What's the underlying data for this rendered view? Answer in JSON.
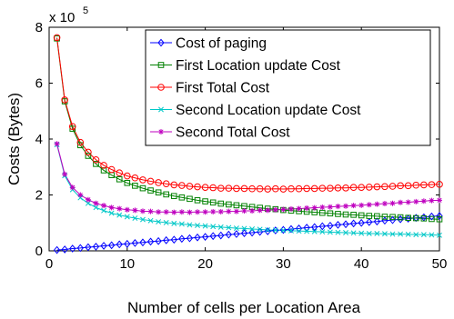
{
  "chart_data": {
    "type": "line",
    "title": "",
    "xlabel": "Number of cells per Location Area",
    "ylabel": "Costs (Bytes)",
    "exponent": {
      "base": "x 10",
      "power": "5"
    },
    "xlim": [
      0,
      50
    ],
    "ylim": [
      0,
      8
    ],
    "y_scale_factor": 100000,
    "xticks": [
      0,
      10,
      20,
      30,
      40,
      50
    ],
    "xtick_labels": [
      "0",
      "10",
      "20",
      "30",
      "40",
      "50"
    ],
    "yticks": [
      0,
      2,
      4,
      6,
      8
    ],
    "ytick_labels": [
      "0",
      "2",
      "4",
      "6",
      "8"
    ],
    "grid": false,
    "legend_position": "top-right",
    "series": [
      {
        "name": "Cost of paging",
        "color": "#0000ff",
        "marker": "diamond",
        "x": [
          1,
          2,
          3,
          4,
          5,
          6,
          7,
          8,
          9,
          10,
          11,
          12,
          13,
          14,
          15,
          16,
          17,
          18,
          19,
          20,
          21,
          22,
          23,
          24,
          25,
          26,
          27,
          28,
          29,
          30,
          31,
          32,
          33,
          34,
          35,
          36,
          37,
          38,
          39,
          40,
          41,
          42,
          43,
          44,
          45,
          46,
          47,
          48,
          49,
          50
        ],
        "y": [
          0.03,
          0.05,
          0.08,
          0.1,
          0.13,
          0.15,
          0.18,
          0.2,
          0.23,
          0.25,
          0.28,
          0.3,
          0.33,
          0.35,
          0.38,
          0.4,
          0.43,
          0.45,
          0.48,
          0.5,
          0.53,
          0.55,
          0.58,
          0.6,
          0.63,
          0.65,
          0.68,
          0.7,
          0.73,
          0.75,
          0.78,
          0.8,
          0.83,
          0.85,
          0.88,
          0.9,
          0.93,
          0.95,
          0.98,
          1.0,
          1.03,
          1.05,
          1.08,
          1.1,
          1.13,
          1.15,
          1.18,
          1.2,
          1.23,
          1.25
        ]
      },
      {
        "name": "First Location update Cost",
        "color": "#008000",
        "marker": "square",
        "x": [
          1,
          2,
          3,
          4,
          5,
          6,
          7,
          8,
          9,
          10,
          11,
          12,
          13,
          14,
          15,
          16,
          17,
          18,
          19,
          20,
          21,
          22,
          23,
          24,
          25,
          26,
          27,
          28,
          29,
          30,
          31,
          32,
          33,
          34,
          35,
          36,
          37,
          38,
          39,
          40,
          41,
          42,
          43,
          44,
          45,
          46,
          47,
          48,
          49,
          50
        ],
        "y": [
          7.6,
          5.35,
          4.37,
          3.78,
          3.4,
          3.11,
          2.88,
          2.71,
          2.56,
          2.43,
          2.33,
          2.24,
          2.16,
          2.09,
          2.02,
          1.96,
          1.91,
          1.86,
          1.81,
          1.77,
          1.73,
          1.69,
          1.66,
          1.63,
          1.6,
          1.57,
          1.54,
          1.51,
          1.49,
          1.46,
          1.44,
          1.42,
          1.4,
          1.38,
          1.36,
          1.34,
          1.32,
          1.3,
          1.29,
          1.27,
          1.25,
          1.24,
          1.22,
          1.21,
          1.2,
          1.18,
          1.17,
          1.16,
          1.14,
          1.13
        ]
      },
      {
        "name": "First Total Cost",
        "color": "#ff0000",
        "marker": "circle",
        "x": [
          1,
          2,
          3,
          4,
          5,
          6,
          7,
          8,
          9,
          10,
          11,
          12,
          13,
          14,
          15,
          16,
          17,
          18,
          19,
          20,
          21,
          22,
          23,
          24,
          25,
          26,
          27,
          28,
          29,
          30,
          31,
          32,
          33,
          34,
          35,
          36,
          37,
          38,
          39,
          40,
          41,
          42,
          43,
          44,
          45,
          46,
          47,
          48,
          49,
          50
        ],
        "y": [
          7.63,
          5.4,
          4.45,
          3.88,
          3.53,
          3.26,
          3.06,
          2.91,
          2.79,
          2.68,
          2.61,
          2.54,
          2.49,
          2.44,
          2.4,
          2.36,
          2.34,
          2.31,
          2.29,
          2.27,
          2.26,
          2.24,
          2.24,
          2.23,
          2.23,
          2.22,
          2.22,
          2.21,
          2.22,
          2.21,
          2.22,
          2.22,
          2.23,
          2.23,
          2.24,
          2.24,
          2.25,
          2.25,
          2.27,
          2.27,
          2.28,
          2.29,
          2.3,
          2.31,
          2.33,
          2.33,
          2.35,
          2.36,
          2.37,
          2.38
        ]
      },
      {
        "name": "Second Location update Cost",
        "color": "#00c8c8",
        "marker": "x",
        "x": [
          1,
          2,
          3,
          4,
          5,
          6,
          7,
          8,
          9,
          10,
          11,
          12,
          13,
          14,
          15,
          16,
          17,
          18,
          19,
          20,
          21,
          22,
          23,
          24,
          25,
          26,
          27,
          28,
          29,
          30,
          31,
          32,
          33,
          34,
          35,
          36,
          37,
          38,
          39,
          40,
          41,
          42,
          43,
          44,
          45,
          46,
          47,
          48,
          49,
          50
        ],
        "y": [
          3.8,
          2.69,
          2.19,
          1.9,
          1.7,
          1.55,
          1.44,
          1.35,
          1.28,
          1.22,
          1.17,
          1.12,
          1.08,
          1.04,
          1.01,
          0.98,
          0.96,
          0.93,
          0.91,
          0.89,
          0.87,
          0.85,
          0.83,
          0.81,
          0.8,
          0.78,
          0.77,
          0.75,
          0.74,
          0.73,
          0.72,
          0.71,
          0.7,
          0.69,
          0.68,
          0.67,
          0.66,
          0.65,
          0.64,
          0.63,
          0.62,
          0.62,
          0.61,
          0.6,
          0.6,
          0.59,
          0.58,
          0.58,
          0.57,
          0.56
        ]
      },
      {
        "name": "Second Total Cost",
        "color": "#bf00bf",
        "marker": "star",
        "x": [
          1,
          2,
          3,
          4,
          5,
          6,
          7,
          8,
          9,
          10,
          11,
          12,
          13,
          14,
          15,
          16,
          17,
          18,
          19,
          20,
          21,
          22,
          23,
          24,
          25,
          26,
          27,
          28,
          29,
          30,
          31,
          32,
          33,
          34,
          35,
          36,
          37,
          38,
          39,
          40,
          41,
          42,
          43,
          44,
          45,
          46,
          47,
          48,
          49,
          50
        ],
        "y": [
          3.83,
          2.74,
          2.27,
          2.0,
          1.83,
          1.7,
          1.62,
          1.55,
          1.51,
          1.47,
          1.45,
          1.42,
          1.41,
          1.39,
          1.39,
          1.38,
          1.39,
          1.38,
          1.39,
          1.39,
          1.4,
          1.4,
          1.41,
          1.41,
          1.43,
          1.43,
          1.45,
          1.45,
          1.47,
          1.48,
          1.5,
          1.51,
          1.53,
          1.54,
          1.56,
          1.57,
          1.59,
          1.6,
          1.62,
          1.63,
          1.65,
          1.67,
          1.69,
          1.7,
          1.73,
          1.74,
          1.76,
          1.78,
          1.8,
          1.81
        ]
      }
    ]
  }
}
